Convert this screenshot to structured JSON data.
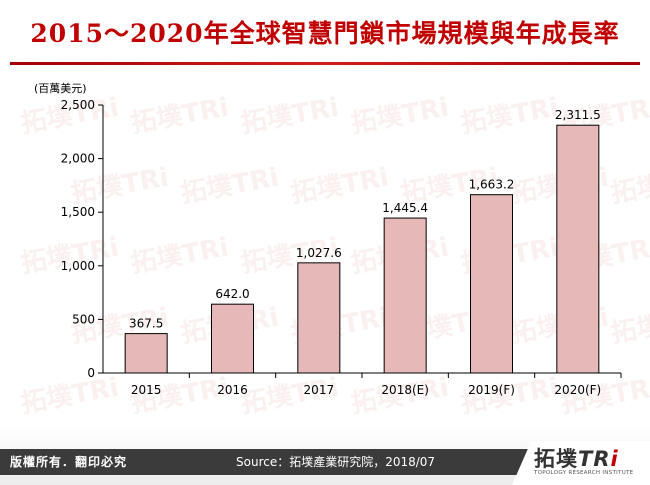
{
  "header": {
    "title": "2015～2020年全球智慧門鎖市場規模與年成長率"
  },
  "chart_data": {
    "type": "bar",
    "unit_label": "(百萬美元)",
    "categories": [
      "2015",
      "2016",
      "2017",
      "2018(E)",
      "2019(F)",
      "2020(F)"
    ],
    "values": [
      367.5,
      642.0,
      1027.6,
      1445.4,
      1663.2,
      2311.5
    ],
    "value_labels": [
      "367.5",
      "642.0",
      "1,027.6",
      "1,445.4",
      "1,663.2",
      "2,311.5"
    ],
    "y_ticks": [
      0,
      500,
      1000,
      1500,
      2000,
      2500
    ],
    "y_tick_labels": [
      "0",
      "500",
      "1,000",
      "1,500",
      "2,000",
      "2,500"
    ],
    "ylim": [
      0,
      2500
    ],
    "bar_color": "#e6b9b8",
    "bar_stroke": "#000000",
    "grid": false,
    "legend": false
  },
  "watermark": {
    "text": "拓墣TRi"
  },
  "footer": {
    "copyright": "版權所有．翻印必究",
    "source": "Source：拓墣產業研究院，2018/07",
    "logo_mark": "拓墣",
    "logo_tri": "TR",
    "logo_i": "i",
    "logo_subtitle": "TOPOLOGY RESEARCH INSTITUTE"
  },
  "colors": {
    "title": "#c00000",
    "footer_bar": "#3b3b3b"
  }
}
